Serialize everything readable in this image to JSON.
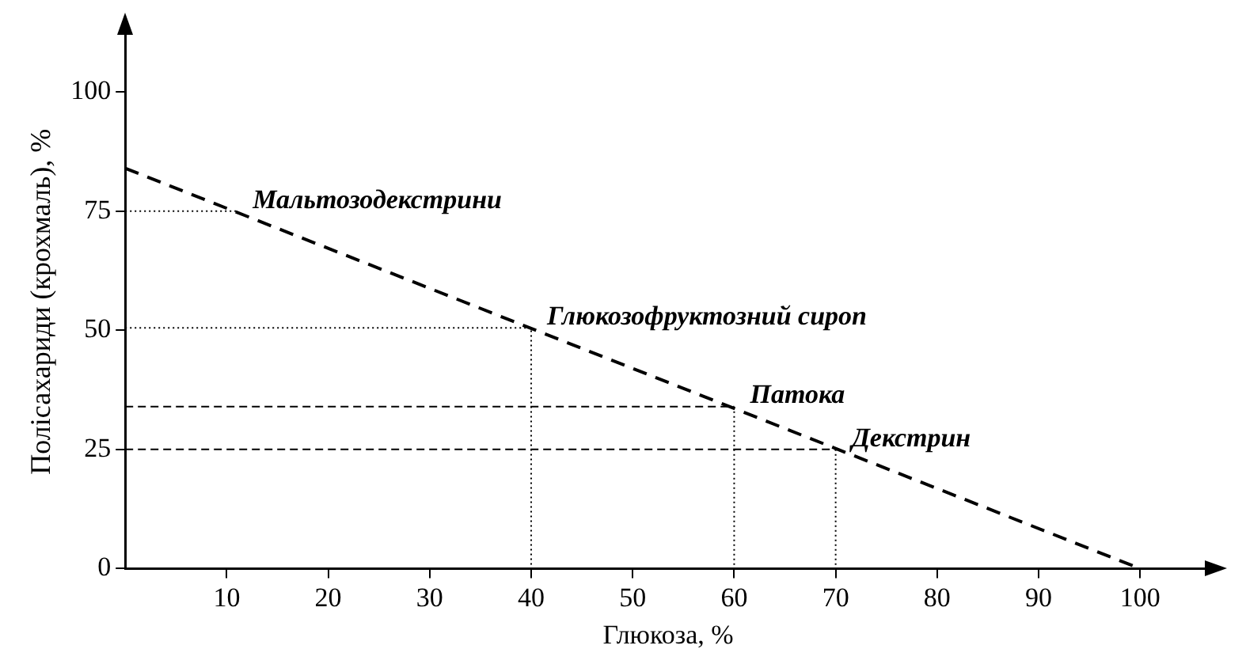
{
  "chart_data": {
    "type": "line",
    "xlabel": "Глюкоза, %",
    "ylabel": "Полісахариди (крохмаль), %",
    "xlim": [
      0,
      107
    ],
    "ylim": [
      0,
      112
    ],
    "xticks": [
      10,
      20,
      30,
      40,
      50,
      60,
      70,
      80,
      90,
      100
    ],
    "yticks": [
      0,
      25,
      50,
      75,
      100
    ],
    "grid": false,
    "legend": false,
    "marker": "none",
    "series": [
      {
        "color": "#000000",
        "x": [
          0,
          100
        ],
        "values": [
          84,
          0
        ],
        "line_style": "dashed"
      },
      {
        "color": "#000000",
        "x": [
          0,
          11
        ],
        "values": [
          75,
          75
        ],
        "line_style": "dotted"
      },
      {
        "color": "#000000",
        "x": [
          0,
          40,
          40
        ],
        "values": [
          50.5,
          50.5,
          0
        ],
        "line_style": "dotted"
      },
      {
        "color": "#000000",
        "x": [
          0,
          60
        ],
        "values": [
          34,
          34
        ],
        "line_style": "dashed"
      },
      {
        "color": "#000000",
        "x": [
          60,
          60
        ],
        "values": [
          34,
          0
        ],
        "line_style": "dotted"
      },
      {
        "color": "#000000",
        "x": [
          0,
          70
        ],
        "values": [
          25,
          25
        ],
        "line_style": "dashed"
      },
      {
        "color": "#000000",
        "x": [
          70,
          70
        ],
        "values": [
          25,
          0
        ],
        "line_style": "dotted"
      }
    ],
    "annotations": [
      {
        "text": "Мальтозодекстрини",
        "x": 11,
        "y": 75
      },
      {
        "text": "Глюкозофруктозний сироп",
        "x": 40,
        "y": 50.5
      },
      {
        "text": "Патока",
        "x": 60,
        "y": 34
      },
      {
        "text": "Декстрин",
        "x": 70,
        "y": 25
      }
    ]
  }
}
